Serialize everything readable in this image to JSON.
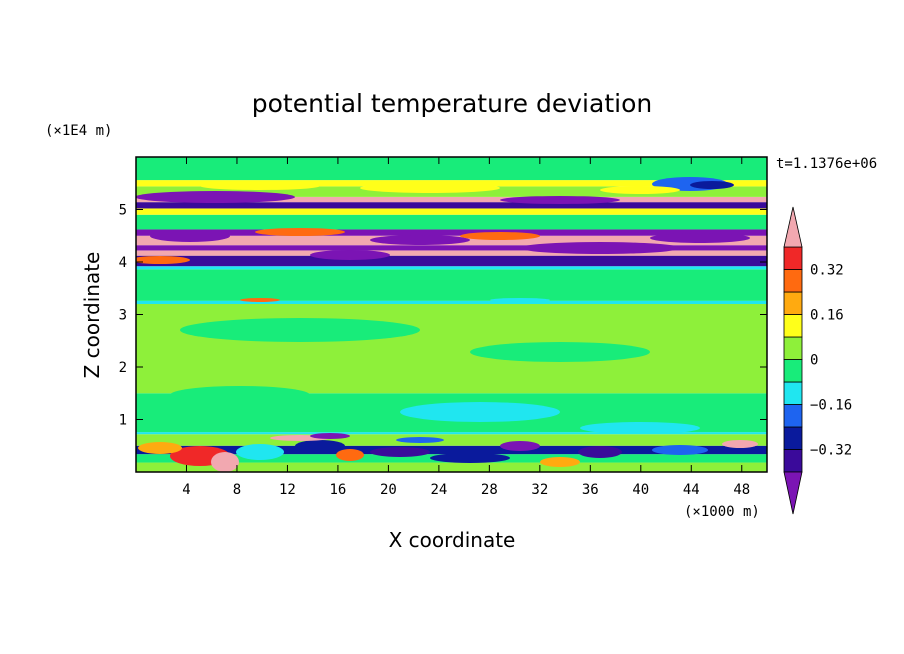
{
  "chart_data": {
    "type": "heatmap",
    "title": "potential temperature deviation",
    "time_label": "t=1.1376e+06",
    "xlabel": "X coordinate",
    "ylabel": "Z coordinate",
    "x_unit": "(×1000 m)",
    "y_unit": "(×1E4 m)",
    "xlim": [
      0,
      50
    ],
    "ylim": [
      0,
      6
    ],
    "x_ticks": [
      4,
      8,
      12,
      16,
      20,
      24,
      28,
      32,
      36,
      40,
      44,
      48
    ],
    "y_ticks": [
      1,
      2,
      3,
      4,
      5
    ],
    "colorbar": {
      "levels": [
        -0.4,
        -0.32,
        -0.24,
        -0.16,
        -0.08,
        0,
        0.08,
        0.16,
        0.24,
        0.32,
        0.4
      ],
      "tick_labels": [
        "0.32",
        "0.16",
        "0",
        "−0.16",
        "−0.32"
      ],
      "tick_values": [
        0.32,
        0.16,
        0,
        -0.16,
        -0.32
      ],
      "colors": [
        "#7b14b4",
        "#3a0a9a",
        "#0a1a9c",
        "#1e64f0",
        "#20e6f0",
        "#18ec7a",
        "#8ef03a",
        "#ffff1a",
        "#ffaa10",
        "#ff6a10",
        "#f02828",
        "#f2a8b0"
      ]
    },
    "bands": [
      {
        "y0": 0.0,
        "y1": 0.18,
        "level": 6
      },
      {
        "y0": 0.18,
        "y1": 0.34,
        "level": 5
      },
      {
        "y0": 0.34,
        "y1": 0.5,
        "level": 2
      },
      {
        "y0": 0.5,
        "y1": 0.72,
        "level": 6
      },
      {
        "y0": 0.72,
        "y1": 0.76,
        "level": 4
      },
      {
        "y0": 0.76,
        "y1": 1.5,
        "level": 5
      },
      {
        "y0": 1.5,
        "y1": 3.2,
        "level": 6
      },
      {
        "y0": 3.2,
        "y1": 3.26,
        "level": 4
      },
      {
        "y0": 3.26,
        "y1": 3.86,
        "level": 5
      },
      {
        "y0": 3.86,
        "y1": 3.92,
        "level": 4
      },
      {
        "y0": 3.92,
        "y1": 4.12,
        "level": 1
      },
      {
        "y0": 4.12,
        "y1": 4.22,
        "level": 11
      },
      {
        "y0": 4.22,
        "y1": 4.32,
        "level": 0
      },
      {
        "y0": 4.32,
        "y1": 4.5,
        "level": 11
      },
      {
        "y0": 4.5,
        "y1": 4.62,
        "level": 0
      },
      {
        "y0": 4.62,
        "y1": 4.9,
        "level": 5
      },
      {
        "y0": 4.9,
        "y1": 5.02,
        "level": 7
      },
      {
        "y0": 5.02,
        "y1": 5.14,
        "level": 1
      },
      {
        "y0": 5.14,
        "y1": 5.24,
        "level": 11
      },
      {
        "y0": 5.24,
        "y1": 5.44,
        "level": 6
      },
      {
        "y0": 5.44,
        "y1": 5.56,
        "level": 7
      },
      {
        "y0": 5.56,
        "y1": 6.0,
        "level": 5
      }
    ]
  }
}
